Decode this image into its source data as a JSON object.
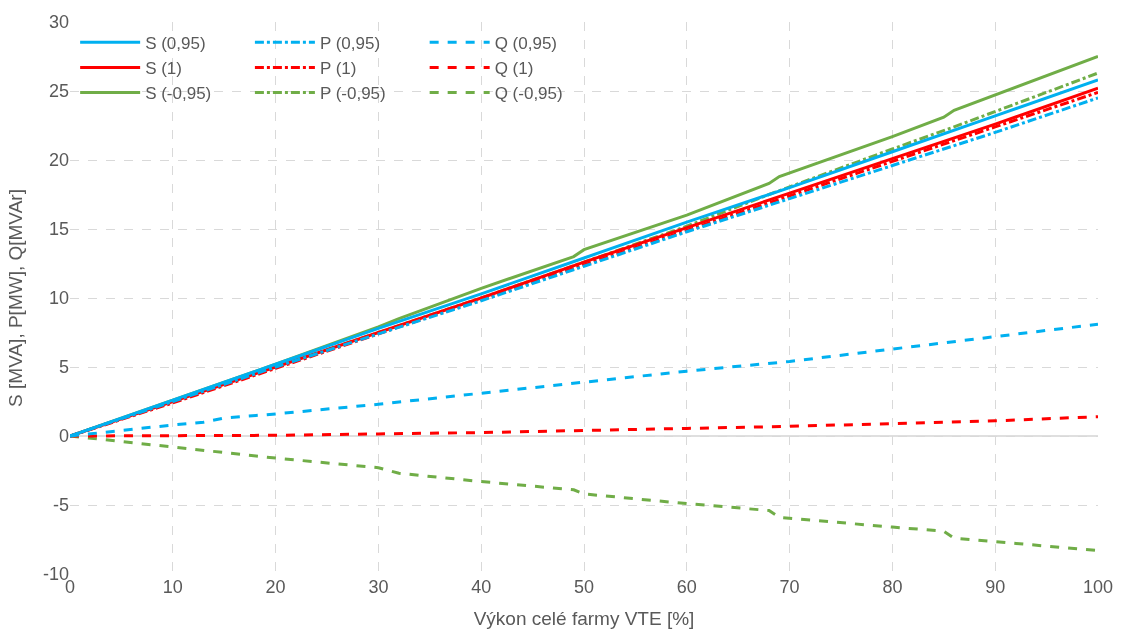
{
  "chart_data": {
    "type": "line",
    "xlabel": "Výkon celé farmy VTE [%]",
    "ylabel": "S [MVA], P[MW], Q[MVAr]",
    "xlim": [
      0,
      100
    ],
    "xticks": [
      0,
      10,
      20,
      30,
      40,
      50,
      60,
      70,
      80,
      90,
      100
    ],
    "ylim": [
      -10,
      30
    ],
    "yticks": [
      -10,
      -5,
      0,
      5,
      10,
      15,
      20,
      25,
      30
    ],
    "grid": true,
    "legend": "top left",
    "marker": "none",
    "series": [
      {
        "name": "S (0,95)",
        "color": "#00b0f0",
        "line_style": "solid",
        "x": [
          0,
          10,
          20,
          30,
          40,
          50,
          60,
          70,
          80,
          90,
          100
        ],
        "values": [
          0,
          2.6,
          5.2,
          7.8,
          10.3,
          12.9,
          15.5,
          18.0,
          20.6,
          23.2,
          25.8
        ]
      },
      {
        "name": "P (0,95)",
        "color": "#00b0f0",
        "line_style": "dashed",
        "x": [
          0,
          10,
          20,
          30,
          40,
          50,
          60,
          70,
          80,
          90,
          100
        ],
        "values": [
          0,
          2.5,
          5.0,
          7.4,
          9.8,
          12.3,
          14.8,
          17.2,
          19.6,
          22.0,
          24.5
        ]
      },
      {
        "name": "Q (0,95)",
        "color": "#00b0f0",
        "line_style": "dotted",
        "x": [
          0,
          10,
          13,
          15,
          20,
          30,
          40,
          50,
          60,
          70,
          80,
          90,
          100
        ],
        "values": [
          0,
          0.8,
          1.0,
          1.3,
          1.6,
          2.3,
          3.1,
          3.9,
          4.7,
          5.4,
          6.3,
          7.2,
          8.1
        ]
      },
      {
        "name": "S (1)",
        "color": "#ff0000",
        "line_style": "solid",
        "x": [
          0,
          10,
          20,
          30,
          40,
          50,
          60,
          70,
          80,
          90,
          100
        ],
        "values": [
          0,
          2.5,
          5.0,
          7.5,
          10.0,
          12.6,
          15.1,
          17.6,
          20.1,
          22.6,
          25.2
        ]
      },
      {
        "name": "P (1)",
        "color": "#ff0000",
        "line_style": "dashed",
        "x": [
          0,
          10,
          20,
          30,
          40,
          50,
          60,
          70,
          80,
          90,
          100
        ],
        "values": [
          0,
          2.4,
          4.9,
          7.4,
          9.9,
          12.4,
          14.9,
          17.4,
          19.9,
          22.4,
          24.9
        ]
      },
      {
        "name": "Q (1)",
        "color": "#ff0000",
        "line_style": "dotted",
        "x": [
          0,
          20,
          30,
          40,
          50,
          60,
          70,
          80,
          90,
          100
        ],
        "values": [
          0,
          0.05,
          0.15,
          0.25,
          0.4,
          0.55,
          0.7,
          0.9,
          1.1,
          1.4
        ]
      },
      {
        "name": "S (-0,95)",
        "color": "#70ad47",
        "line_style": "solid",
        "x": [
          0,
          10,
          20,
          30,
          32,
          40,
          49,
          50,
          60,
          68,
          69,
          80,
          85,
          86,
          100
        ],
        "values": [
          0,
          2.6,
          5.2,
          7.9,
          8.5,
          10.7,
          13.0,
          13.5,
          16.0,
          18.3,
          18.8,
          21.7,
          23.1,
          23.6,
          27.5
        ]
      },
      {
        "name": "P (-0,95)",
        "color": "#70ad47",
        "line_style": "dashed",
        "x": [
          0,
          10,
          20,
          30,
          40,
          50,
          60,
          68,
          80,
          86,
          100
        ],
        "values": [
          0,
          2.5,
          5.0,
          7.5,
          10.0,
          12.6,
          15.2,
          17.5,
          20.8,
          22.4,
          26.3
        ]
      },
      {
        "name": "Q (-0,95)",
        "color": "#70ad47",
        "line_style": "dotted",
        "x": [
          0,
          10,
          20,
          30,
          32,
          40,
          49,
          50,
          60,
          68,
          69,
          80,
          85,
          86,
          100
        ],
        "values": [
          0,
          -0.8,
          -1.6,
          -2.3,
          -2.7,
          -3.3,
          -3.9,
          -4.2,
          -4.9,
          -5.4,
          -5.9,
          -6.6,
          -6.9,
          -7.4,
          -8.3
        ]
      }
    ]
  }
}
